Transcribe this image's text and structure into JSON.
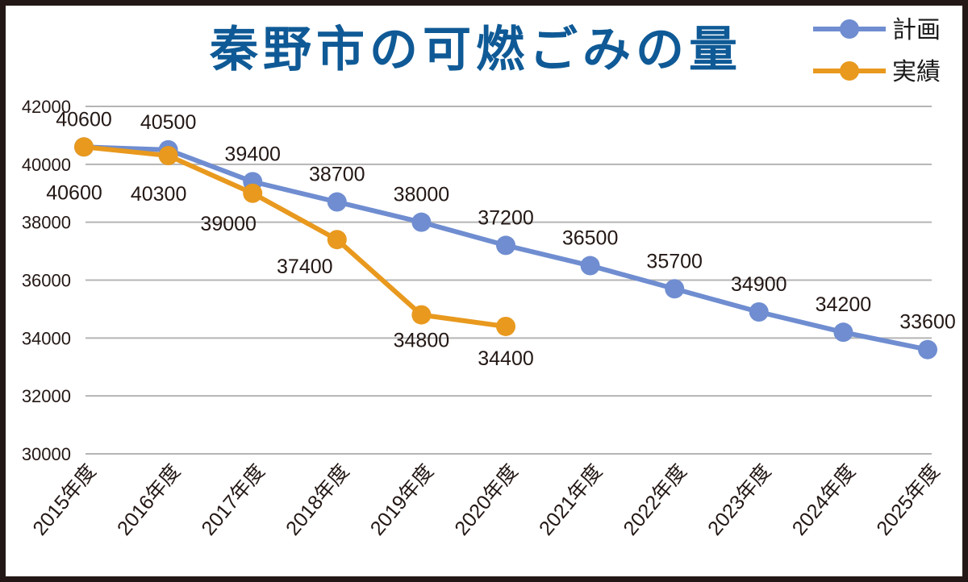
{
  "chart_data": {
    "type": "line",
    "title": "秦野市の可燃ごみの量",
    "xlabel": "",
    "ylabel": "",
    "categories": [
      "2015年度",
      "2016年度",
      "2017年度",
      "2018年度",
      "2019年度",
      "2020年度",
      "2021年度",
      "2022年度",
      "2023年度",
      "2024年度",
      "2025年度"
    ],
    "ylim": [
      30000,
      42000
    ],
    "yticks": [
      42000,
      40000,
      38000,
      36000,
      34000,
      32000,
      30000
    ],
    "grid": true,
    "legend_position": "top-right",
    "series": [
      {
        "name": "計画",
        "color": "#6f8dd0",
        "values": [
          40600,
          40500,
          39400,
          38700,
          38000,
          37200,
          36500,
          35700,
          34900,
          34200,
          33600
        ]
      },
      {
        "name": "実績",
        "color": "#e8991e",
        "values": [
          40600,
          40300,
          39000,
          37400,
          34800,
          34400,
          null,
          null,
          null,
          null,
          null
        ]
      }
    ]
  }
}
